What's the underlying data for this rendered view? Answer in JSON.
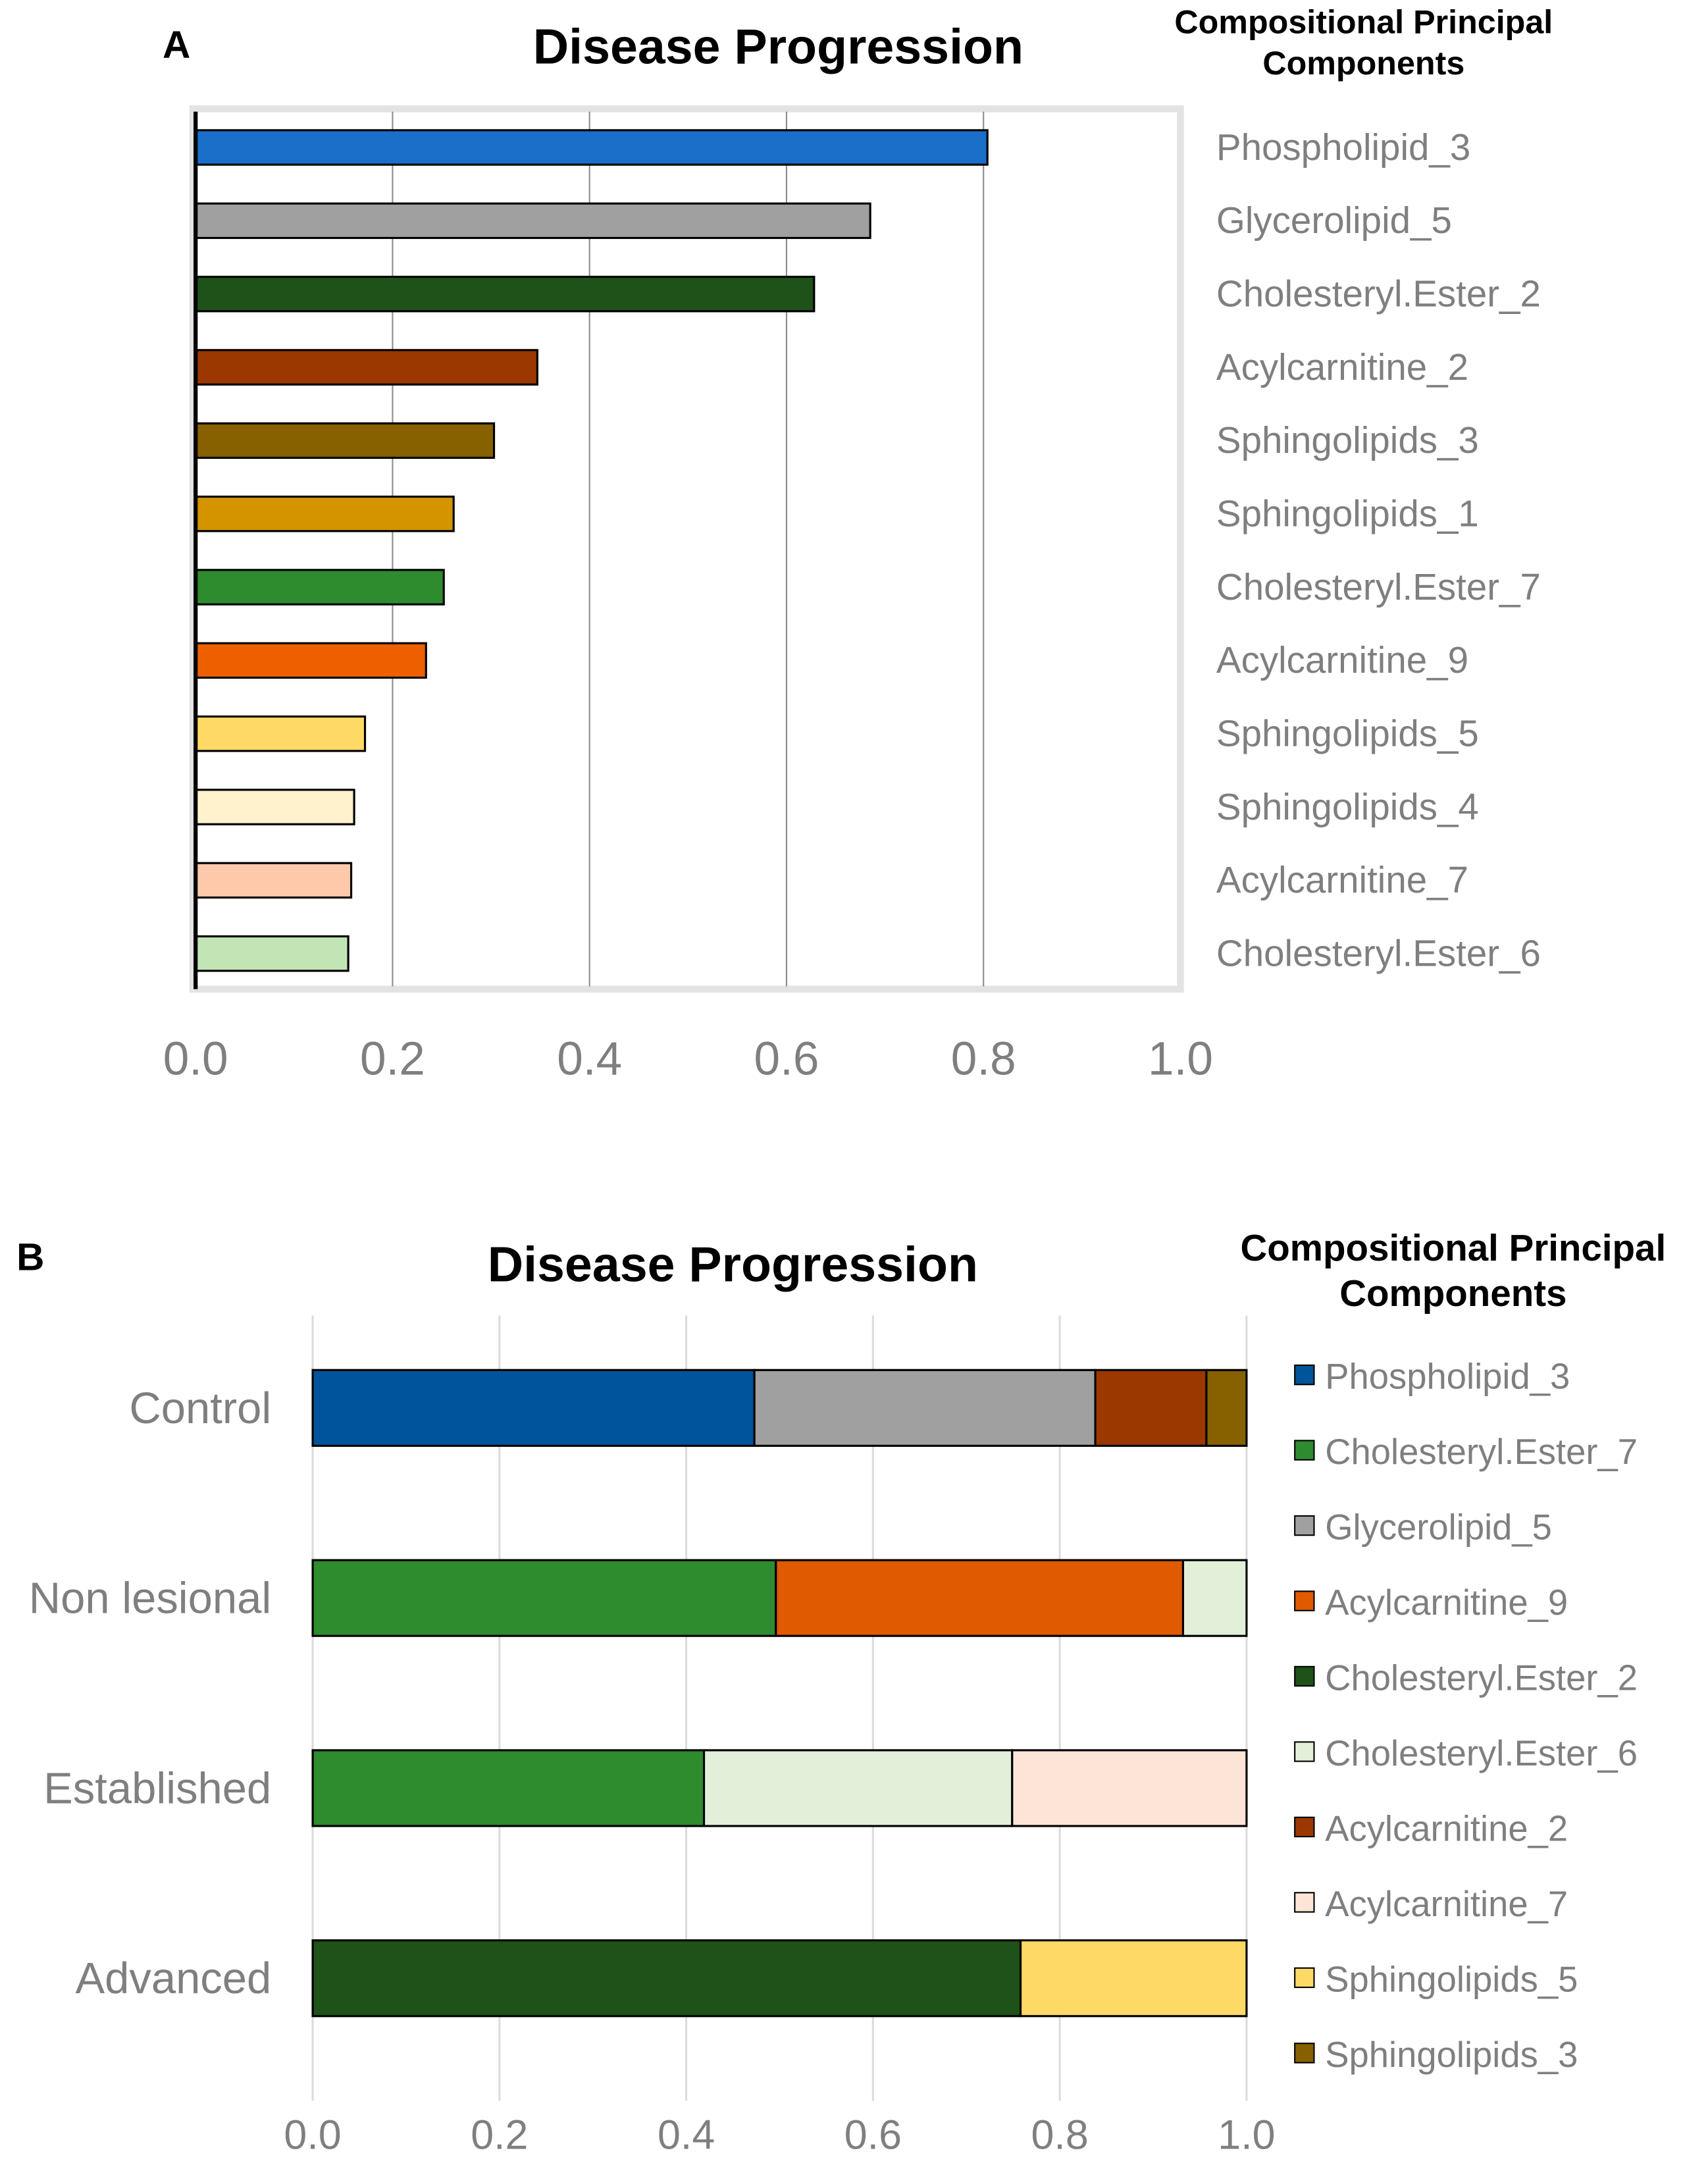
{
  "chart_data": [
    {
      "type": "bar",
      "orientation": "horizontal",
      "panel_label": "A",
      "title": "Disease Progression",
      "legend_title": "Compositional Principal Components",
      "categories": [
        "Phospholipid_3",
        "Glycerolipid_5",
        "Cholesteryl.Ester_2",
        "Acylcarnitine_2",
        "Sphingolipids_3",
        "Sphingolipids_1",
        "Cholesteryl.Ester_7",
        "Acylcarnitine_9",
        "Sphingolipids_5",
        "Sphingolipids_4",
        "Acylcarnitine_7",
        "Cholesteryl.Ester_6"
      ],
      "values": [
        0.804,
        0.685,
        0.628,
        0.347,
        0.303,
        0.262,
        0.252,
        0.234,
        0.172,
        0.161,
        0.158,
        0.155
      ],
      "colors": [
        "#1a6fc9",
        "#a0a0a0",
        "#1e5218",
        "#9a3800",
        "#876000",
        "#d39400",
        "#2e8b2e",
        "#ee5f00",
        "#ffd966",
        "#fff2cc",
        "#fdc9aa",
        "#c2e5b5"
      ],
      "xlim": [
        0,
        1.0
      ],
      "xticks": [
        "0.0",
        "0.2",
        "0.4",
        "0.6",
        "0.8",
        "1.0"
      ],
      "grid": true
    },
    {
      "type": "bar",
      "orientation": "horizontal",
      "stacked": true,
      "panel_label": "B",
      "title": "Disease Progression",
      "legend_title": "Compositional Principal Components",
      "legend_placement": "right",
      "categories": [
        "Control",
        "Non lesional",
        "Established",
        "Advanced"
      ],
      "stacks": [
        [
          {
            "name": "Phospholipid_3",
            "value": 0.473
          },
          {
            "name": "Glycerolipid_5",
            "value": 0.365
          },
          {
            "name": "Acylcarnitine_2",
            "value": 0.119
          },
          {
            "name": "Sphingolipids_3",
            "value": 0.043
          }
        ],
        [
          {
            "name": "Cholesteryl.Ester_7",
            "value": 0.496
          },
          {
            "name": "Acylcarnitine_9",
            "value": 0.436
          },
          {
            "name": "Cholesteryl.Ester_6",
            "value": 0.068
          }
        ],
        [
          {
            "name": "Cholesteryl.Ester_7",
            "value": 0.419
          },
          {
            "name": "Cholesteryl.Ester_6",
            "value": 0.33
          },
          {
            "name": "Acylcarnitine_7",
            "value": 0.251
          }
        ],
        [
          {
            "name": "Cholesteryl.Ester_2",
            "value": 0.758
          },
          {
            "name": "Sphingolipids_5",
            "value": 0.242
          }
        ]
      ],
      "legend": [
        {
          "name": "Phospholipid_3",
          "color": "#00549a"
        },
        {
          "name": "Cholesteryl.Ester_7",
          "color": "#2e8b2e"
        },
        {
          "name": "Glycerolipid_5",
          "color": "#a0a0a0"
        },
        {
          "name": "Acylcarnitine_9",
          "color": "#e05a00"
        },
        {
          "name": "Cholesteryl.Ester_2",
          "color": "#1e5218"
        },
        {
          "name": "Cholesteryl.Ester_6",
          "color": "#e2f0d9"
        },
        {
          "name": "Acylcarnitine_2",
          "color": "#9a3800"
        },
        {
          "name": "Acylcarnitine_7",
          "color": "#fce4d6"
        },
        {
          "name": "Sphingolipids_5",
          "color": "#ffd966"
        },
        {
          "name": "Sphingolipids_3",
          "color": "#876000"
        }
      ],
      "xlim": [
        0,
        1.0
      ],
      "xticks": [
        "0.0",
        "0.2",
        "0.4",
        "0.6",
        "0.8",
        "1.0"
      ],
      "grid": true
    }
  ]
}
